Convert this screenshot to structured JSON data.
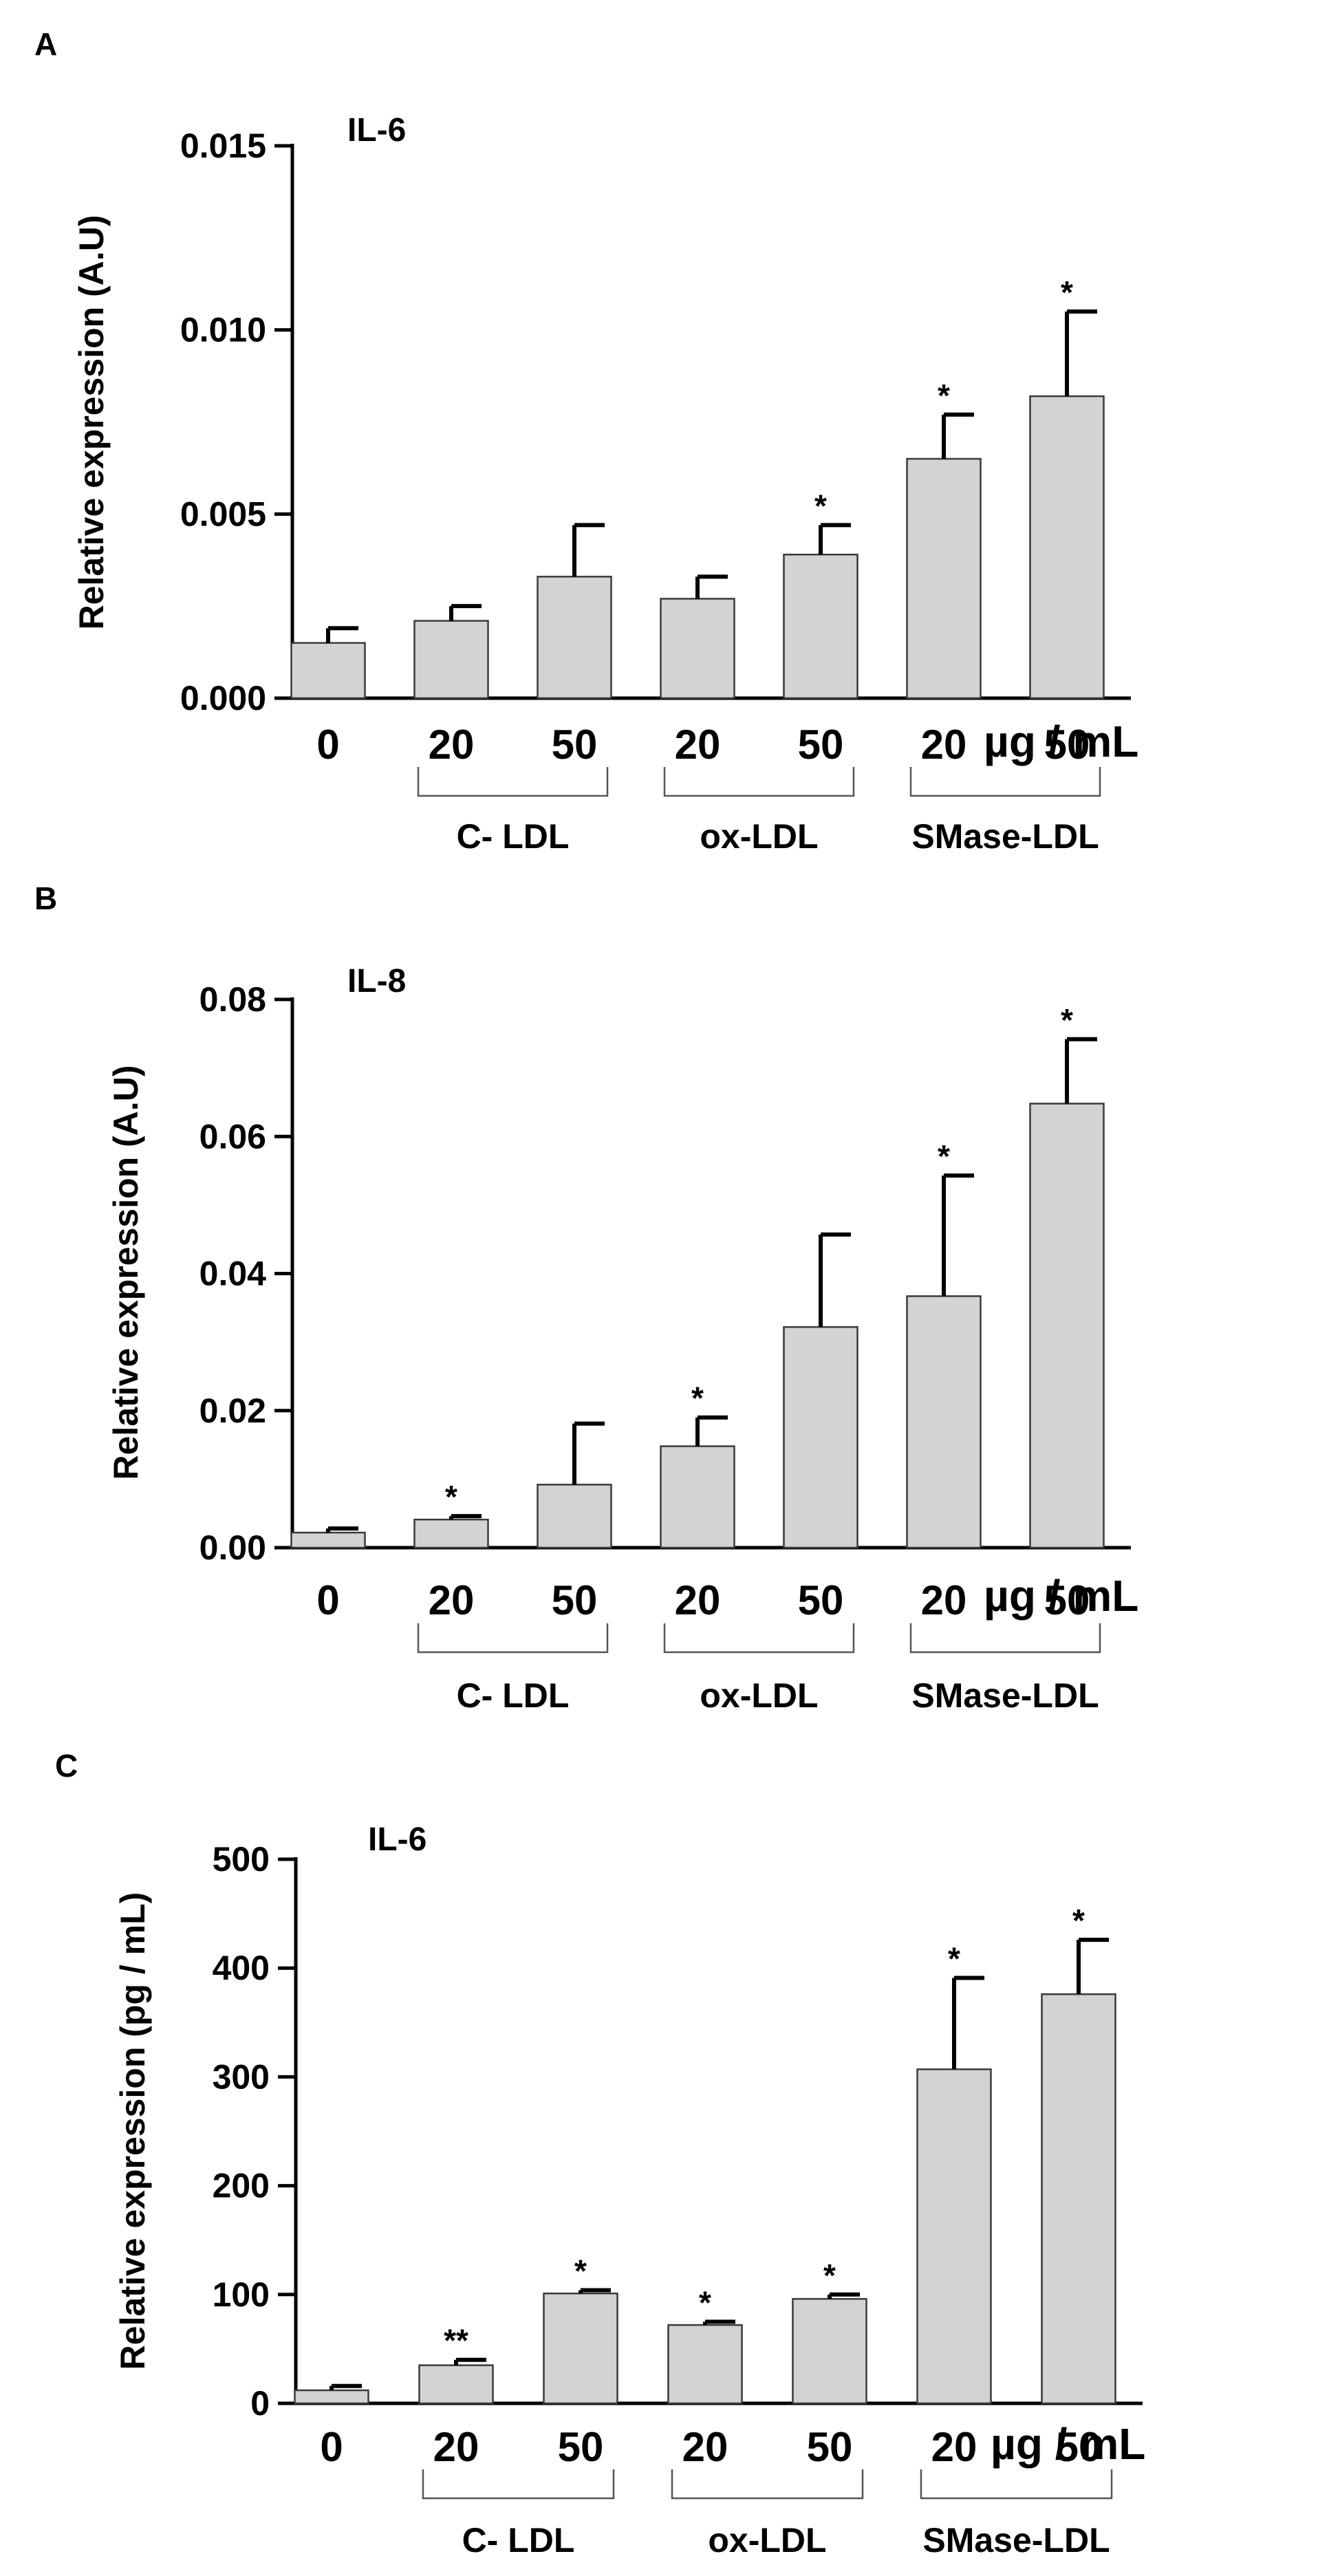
{
  "chart_data": [
    {
      "type": "bar",
      "panel_label": "A",
      "title": "IL-6",
      "ylabel": "Relative expression (A.U)",
      "xlabel": "",
      "ylim": [
        0,
        0.015
      ],
      "yticks": [
        "0.000",
        "0.005",
        "0.010",
        "0.015"
      ],
      "categories": [
        "0",
        "20",
        "50",
        "20",
        "50",
        "20",
        "50"
      ],
      "values": [
        0.0015,
        0.0021,
        0.0033,
        0.0027,
        0.0039,
        0.0065,
        0.0082
      ],
      "errors": [
        0.0004,
        0.0004,
        0.0014,
        0.0006,
        0.0008,
        0.0012,
        0.0023
      ],
      "significance": [
        "",
        "",
        "",
        "",
        "*",
        "*",
        "*"
      ],
      "groups": [
        {
          "label": "C- LDL",
          "bars": [
            1,
            2
          ]
        },
        {
          "label": "ox-LDL",
          "bars": [
            3,
            4
          ]
        },
        {
          "label": "SMase-LDL",
          "bars": [
            5,
            6
          ]
        }
      ],
      "unit_label": "µg / mL"
    },
    {
      "type": "bar",
      "panel_label": "B",
      "title": "IL-8",
      "ylabel": "Relative expression (A.U)",
      "xlabel": "",
      "ylim": [
        0,
        0.08
      ],
      "yticks": [
        "0.00",
        "0.02",
        "0.04",
        "0.06",
        "0.08"
      ],
      "categories": [
        "0",
        "20",
        "50",
        "20",
        "50",
        "20",
        "50"
      ],
      "values": [
        0.0022,
        0.0041,
        0.0092,
        0.0148,
        0.0322,
        0.0367,
        0.0648
      ],
      "errors": [
        0.0006,
        0.0005,
        0.0089,
        0.0042,
        0.0135,
        0.0176,
        0.0094
      ],
      "significance": [
        "",
        "*",
        "",
        "*",
        "",
        "*",
        "*"
      ],
      "groups": [
        {
          "label": "C- LDL",
          "bars": [
            1,
            2
          ]
        },
        {
          "label": "ox-LDL",
          "bars": [
            3,
            4
          ]
        },
        {
          "label": "SMase-LDL",
          "bars": [
            5,
            6
          ]
        }
      ],
      "unit_label": "µg / mL"
    },
    {
      "type": "bar",
      "panel_label": "C",
      "title": "IL-6",
      "ylabel": "Relative expression (pg / mL)",
      "xlabel": "",
      "ylim": [
        0,
        500
      ],
      "yticks": [
        "0",
        "100",
        "200",
        "300",
        "400",
        "500"
      ],
      "categories": [
        "0",
        "20",
        "50",
        "20",
        "50",
        "20",
        "50"
      ],
      "values": [
        12,
        35,
        101,
        72,
        96,
        307,
        376
      ],
      "errors": [
        4,
        5,
        3,
        3,
        4,
        84,
        50
      ],
      "significance": [
        "",
        "**",
        "*",
        "*",
        "*",
        "*",
        "*"
      ],
      "groups": [
        {
          "label": "C- LDL",
          "bars": [
            1,
            2
          ]
        },
        {
          "label": "ox-LDL",
          "bars": [
            3,
            4
          ]
        },
        {
          "label": "SMase-LDL",
          "bars": [
            5,
            6
          ]
        }
      ],
      "unit_label": "µg / mL"
    }
  ]
}
